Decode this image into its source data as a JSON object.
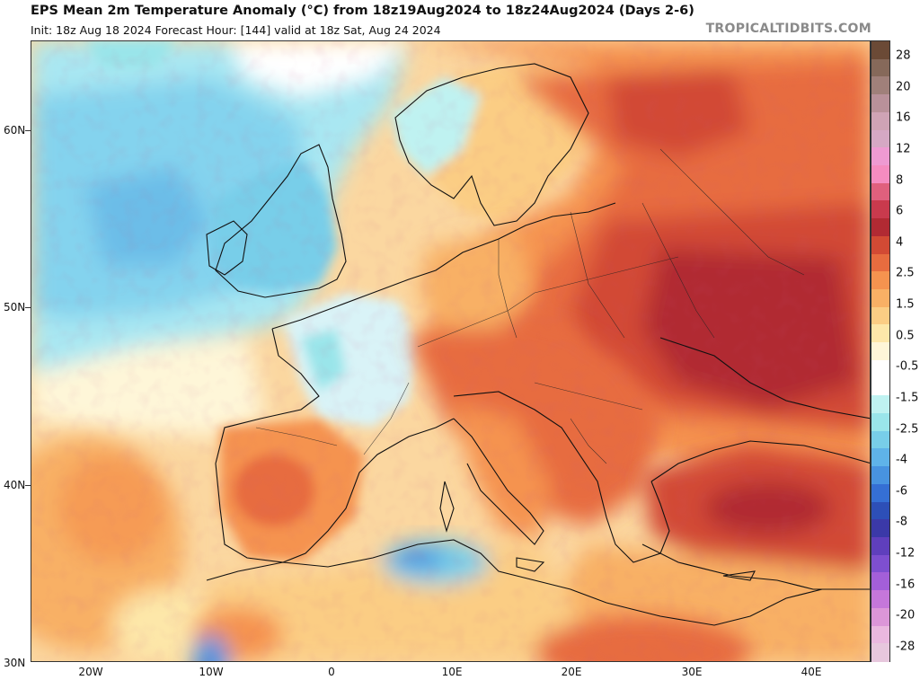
{
  "header": {
    "title": "EPS Mean 2m Temperature Anomaly (°C) from 18z19Aug2024 to 18z24Aug2024 (Days 2-6)",
    "subtitle": "Init: 18z Aug 18 2024   Forecast Hour: [144]   valid at 18z Sat, Aug 24 2024",
    "brand": "TROPICALTIDBITS.COM"
  },
  "map": {
    "region": "Europe",
    "variable": "2m temperature anomaly",
    "units": "°C",
    "lat_labels": [
      "60N",
      "50N",
      "40N",
      "30N"
    ],
    "lon_labels": [
      "20W",
      "10W",
      "0",
      "10E",
      "20E",
      "30E",
      "40E"
    ],
    "extent": {
      "lon_min": -25,
      "lon_max": 45,
      "lat_min": 30,
      "lat_max": 65
    }
  },
  "colorbar": {
    "labels": [
      "28",
      "20",
      "16",
      "12",
      "8",
      "6",
      "4",
      "2.5",
      "1.5",
      "0.5",
      "-0.5",
      "-1.5",
      "-2.5",
      "-4",
      "-6",
      "-8",
      "-12",
      "-16",
      "-20",
      "-28"
    ],
    "colors": [
      "#6b4a36",
      "#86695a",
      "#a0807a",
      "#b9919a",
      "#cfa3b5",
      "#d5a8c4",
      "#ee9ad2",
      "#f58cc0",
      "#e0607d",
      "#c93a4d",
      "#b12a33",
      "#d24a34",
      "#e76c3f",
      "#f5934f",
      "#f8b065",
      "#fbcd84",
      "#fde7a9",
      "#fef6d8",
      "#ffffff",
      "#ffffff",
      "#bff2f1",
      "#9ae5ea",
      "#78cee9",
      "#5fb3e9",
      "#4893e0",
      "#356fd4",
      "#2d4fb7",
      "#3b39a8",
      "#5f3fbd",
      "#7e4fd0",
      "#a35fd9",
      "#c577da",
      "#dc96d8",
      "#eab8df",
      "#e7c7dd"
    ]
  }
}
